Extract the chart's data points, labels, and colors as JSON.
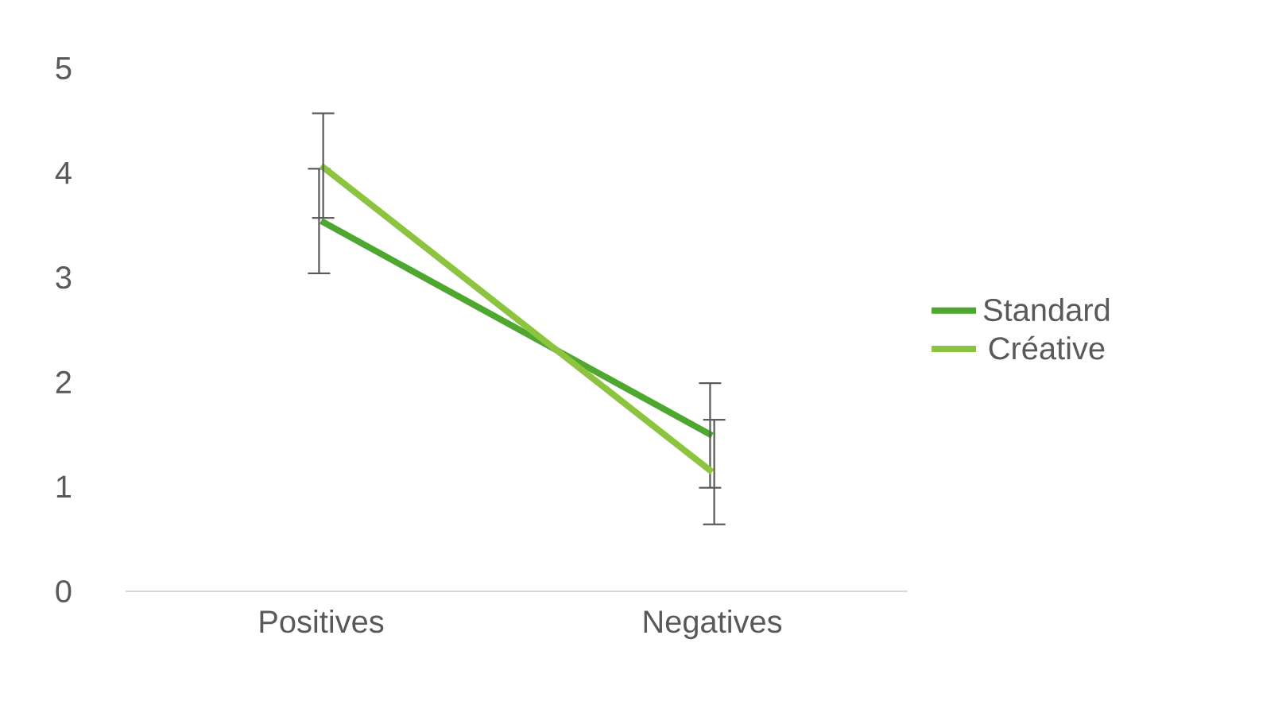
{
  "chart_data": {
    "type": "line",
    "categories": [
      "Positives",
      "Negatives"
    ],
    "series": [
      {
        "name": "Standard",
        "color": "#4ea72e",
        "values": [
          3.54,
          1.49
        ],
        "errors": [
          0.5,
          0.5
        ]
      },
      {
        "name": "Créative",
        "color": "#8cc43f",
        "values": [
          4.07,
          1.14
        ],
        "errors": [
          0.5,
          0.5
        ]
      }
    ],
    "ylim": [
      0,
      5
    ],
    "yticks": [
      0,
      1,
      2,
      3,
      4,
      5
    ],
    "grid": false,
    "legend": "right",
    "marker": "none",
    "line_style": "solid"
  }
}
